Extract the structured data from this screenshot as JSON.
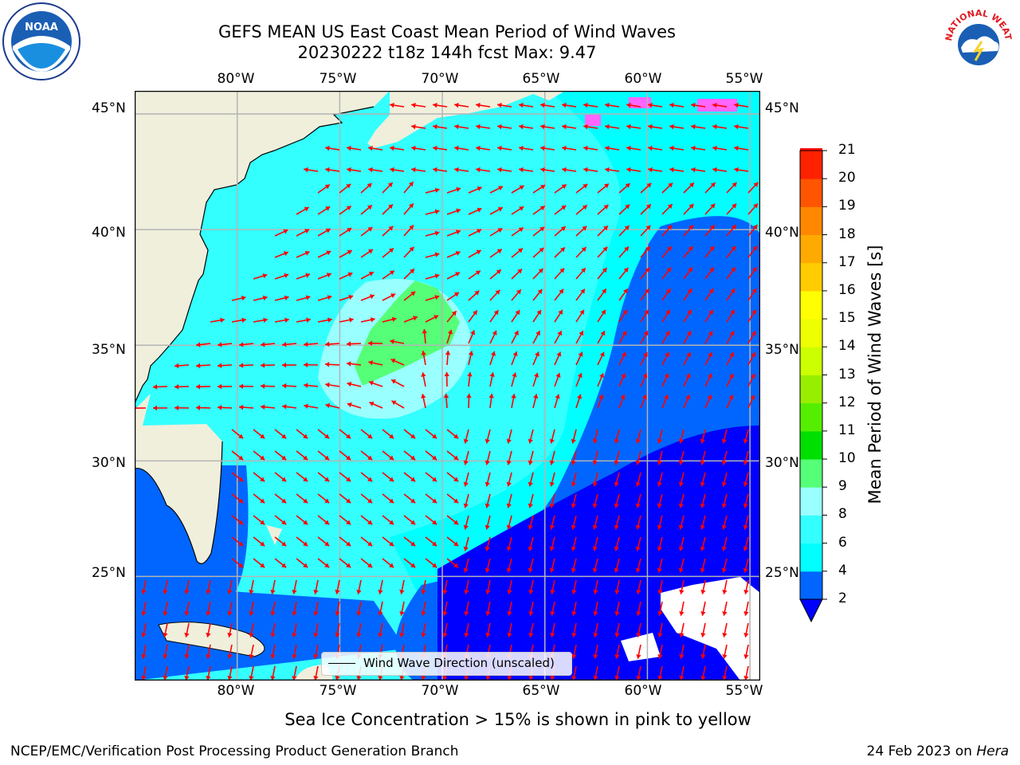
{
  "header": {
    "title_line1": "GEFS MEAN US East Coast Mean Period of Wind Waves",
    "title_line2": "20230222 t18z 144h fcst   Max: 9.47"
  },
  "logos": {
    "left": {
      "name": "noaa-logo",
      "text": "NOAA"
    },
    "right": {
      "name": "nws-logo",
      "ring_text": "NATIONAL WEATHER SERVICE"
    }
  },
  "map": {
    "lon_labels": [
      "80°W",
      "75°W",
      "70°W",
      "65°W",
      "60°W",
      "55°W"
    ],
    "lat_labels": [
      "45°N",
      "40°N",
      "35°N",
      "30°N",
      "25°N"
    ],
    "extent": {
      "lon_min": -85,
      "lon_max": -54.5,
      "lat_min": 20.5,
      "lat_max": 46
    },
    "colors": {
      "land": "#efefdc",
      "grid": "#b4b4b4",
      "arrow": "#ff0000",
      "coast": "#000000"
    },
    "legend_label": "Wind Wave Direction (unscaled)"
  },
  "colorbar": {
    "title": "Mean Period of Wind Waves [s]",
    "levels": [
      "2",
      "4",
      "6",
      "8",
      "9",
      "10",
      "11",
      "12",
      "13",
      "14",
      "15",
      "16",
      "17",
      "18",
      "19",
      "20",
      "21"
    ],
    "colors": [
      "#0066ff",
      "#00ffff",
      "#33ffff",
      "#99ffff",
      "#55ff77",
      "#00e000",
      "#55ee00",
      "#99ee00",
      "#ccff00",
      "#eeff00",
      "#ffff00",
      "#ffcc00",
      "#ffaa00",
      "#ff8800",
      "#ff5500",
      "#ff2200",
      "#ff0000"
    ],
    "under_color": "#0000ff"
  },
  "note": "Sea Ice Concentration > 15% is shown in pink to yellow",
  "footer": {
    "left": "NCEP/EMC/Verification Post Processing Product Generation Branch",
    "right_prefix": "24 Feb 2023 on ",
    "right_emph": "Hera"
  }
}
